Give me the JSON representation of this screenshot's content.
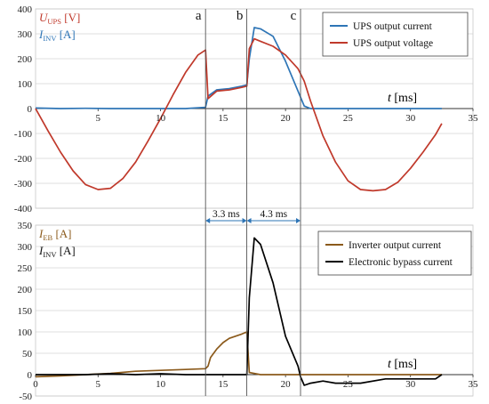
{
  "chart_data": [
    {
      "type": "line",
      "ylim": [
        -400,
        400
      ],
      "xlim": [
        0,
        35
      ],
      "yticks": [
        -400,
        -300,
        -200,
        -100,
        0,
        100,
        200,
        300,
        400
      ],
      "xticks": [
        5,
        10,
        15,
        20,
        25,
        30,
        35
      ],
      "xlabel": "t [ms]",
      "ylabel_lines": [
        {
          "text": "U",
          "sub": "UPS",
          "unit": " [V]",
          "color": "#c0392b"
        },
        {
          "text": "I",
          "sub": "INV",
          "unit": " [A]",
          "color": "#2e75b6"
        }
      ],
      "legend": "top-right",
      "series": [
        {
          "name": "UPS output current",
          "color": "#2e75b6",
          "x": [
            0,
            2,
            4,
            6,
            8,
            10,
            12,
            13.6,
            13.8,
            14.5,
            15.5,
            16.5,
            16.9,
            17.1,
            17.5,
            18,
            19,
            20,
            21,
            21.5,
            22,
            24,
            26,
            28,
            30,
            32,
            32.5
          ],
          "y": [
            2,
            0,
            1,
            0,
            0,
            0,
            0,
            5,
            50,
            75,
            80,
            90,
            95,
            200,
            325,
            320,
            290,
            190,
            70,
            10,
            0,
            0,
            0,
            0,
            0,
            0,
            0
          ]
        },
        {
          "name": "UPS output voltage",
          "color": "#c0392b",
          "x": [
            0,
            1,
            2,
            3,
            4,
            5,
            6,
            7,
            8,
            9,
            10,
            11,
            12,
            13,
            13.6,
            13.8,
            14.5,
            15.5,
            16.5,
            16.9,
            17.1,
            17.5,
            18,
            19,
            20,
            21,
            21.5,
            22,
            23,
            24,
            25,
            26,
            27,
            28,
            29,
            30,
            31,
            32,
            32.5
          ],
          "y": [
            0,
            -90,
            -175,
            -250,
            -305,
            -325,
            -320,
            -280,
            -215,
            -130,
            -40,
            55,
            145,
            215,
            235,
            40,
            70,
            75,
            85,
            90,
            240,
            280,
            270,
            250,
            215,
            160,
            110,
            30,
            -110,
            -215,
            -290,
            -325,
            -330,
            -325,
            -295,
            -240,
            -175,
            -105,
            -60
          ]
        }
      ],
      "markers": [
        {
          "label": "a",
          "x": 13.6
        },
        {
          "label": "b",
          "x": 16.9
        },
        {
          "label": "c",
          "x": 21.2
        }
      ]
    },
    {
      "type": "line",
      "ylim": [
        -50,
        350
      ],
      "xlim": [
        0,
        35
      ],
      "yticks": [
        -50,
        0,
        50,
        100,
        150,
        200,
        250,
        300,
        350
      ],
      "xticks": [
        0,
        5,
        10,
        15,
        20,
        25,
        30,
        35
      ],
      "xlabel": "t [ms]",
      "ylabel_lines": [
        {
          "text": "I",
          "sub": "EB",
          "unit": " [A]",
          "color": "#8b5a1b"
        },
        {
          "text": "I",
          "sub": "INV",
          "unit": " [A]",
          "color": "#111111"
        }
      ],
      "legend": "top-right",
      "series": [
        {
          "name": "Inverter output current",
          "color": "#8b5a1b",
          "x": [
            0,
            2,
            4,
            6,
            8,
            10,
            12,
            13.6,
            13.8,
            14,
            14.5,
            15,
            15.5,
            16,
            16.5,
            16.9,
            17.1,
            18,
            20,
            22,
            24,
            26,
            28,
            30,
            32,
            32.5
          ],
          "y": [
            -5,
            -3,
            0,
            3,
            8,
            10,
            12,
            14,
            20,
            40,
            60,
            75,
            85,
            90,
            95,
            100,
            5,
            0,
            0,
            0,
            0,
            0,
            0,
            0,
            0,
            0
          ]
        },
        {
          "name": "Electronic bypass current",
          "color": "#000000",
          "x": [
            0,
            2,
            4,
            6,
            8,
            10,
            12,
            13.6,
            15,
            16.9,
            17.1,
            17.5,
            18,
            19,
            20,
            21,
            21.2,
            21.5,
            22,
            23,
            24,
            26,
            28,
            30,
            32,
            32.5
          ],
          "y": [
            0,
            0,
            0,
            2,
            0,
            2,
            0,
            0,
            0,
            0,
            180,
            320,
            305,
            215,
            90,
            20,
            -5,
            -25,
            -20,
            -15,
            -20,
            -20,
            -10,
            -10,
            -10,
            0
          ]
        }
      ],
      "intervals": [
        {
          "label": "3.3 ms",
          "from": 13.6,
          "to": 16.9
        },
        {
          "label": "4.3 ms",
          "from": 16.9,
          "to": 21.2
        }
      ]
    }
  ]
}
